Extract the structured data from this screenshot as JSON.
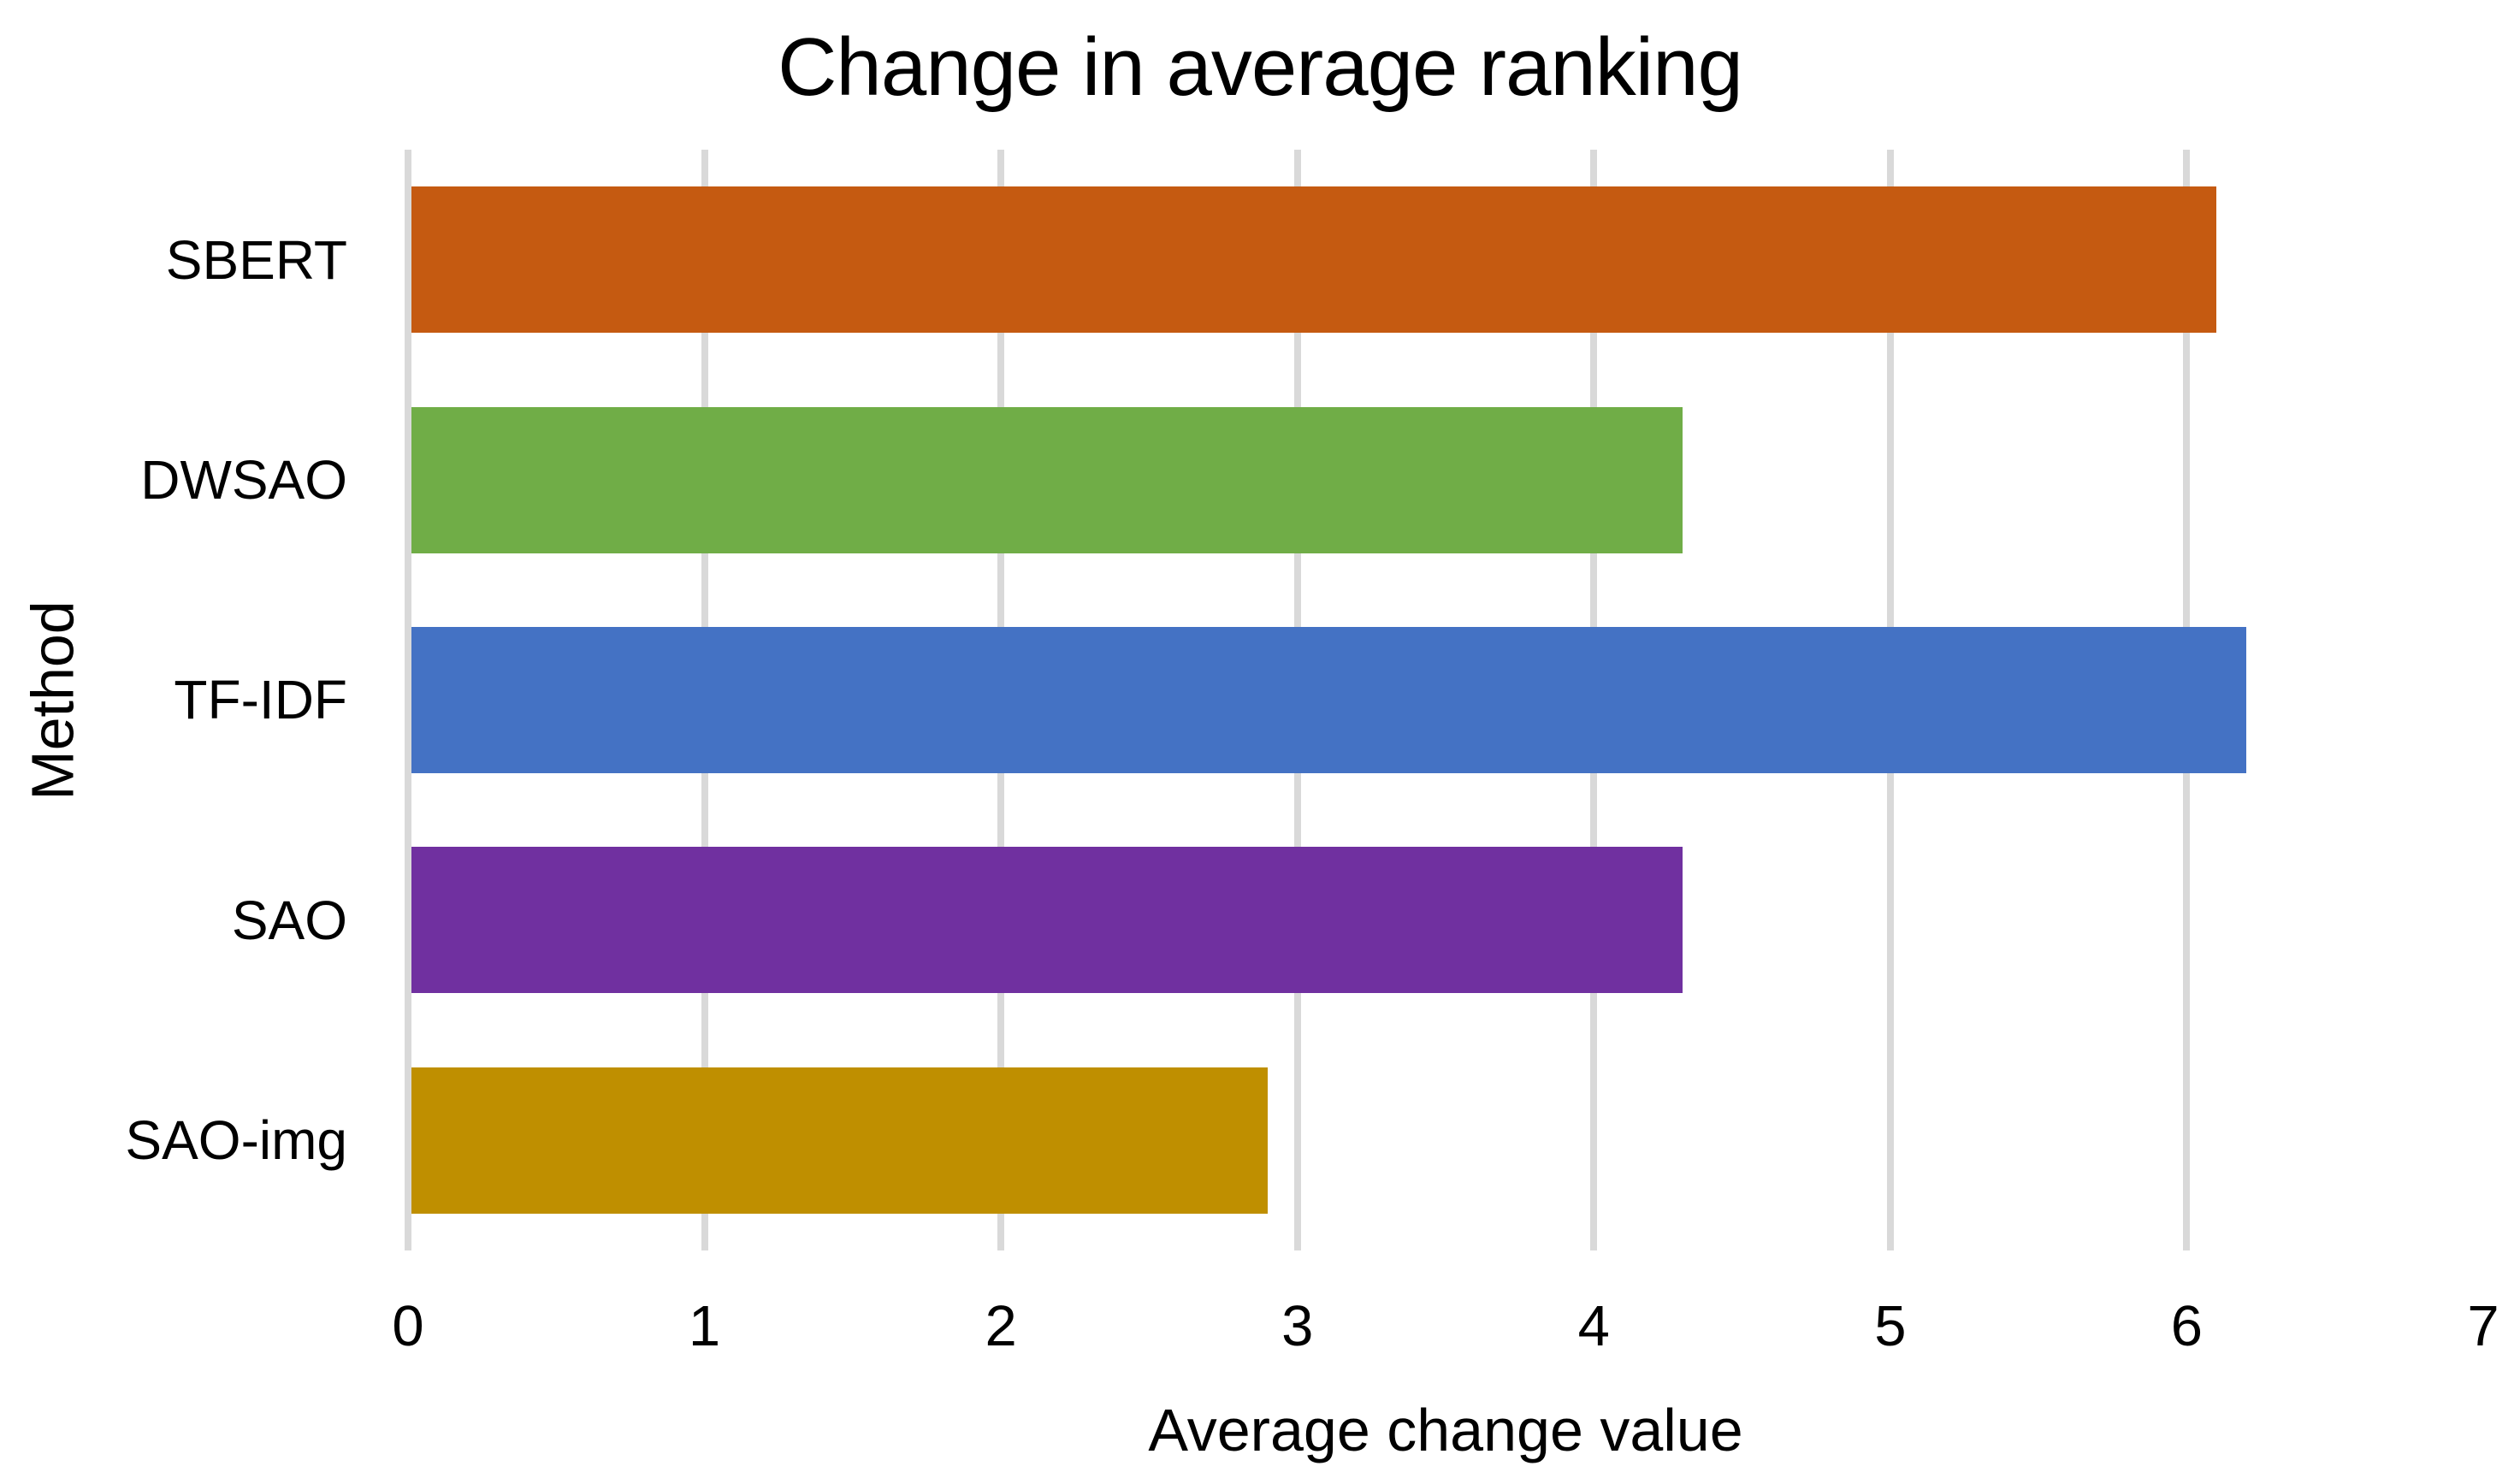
{
  "chart_data": {
    "type": "bar",
    "orientation": "horizontal",
    "title": "Change in average ranking",
    "xlabel": "Average change value",
    "ylabel": "Method",
    "categories": [
      "SBERT",
      "DWSAO",
      "TF-IDF",
      "SAO",
      "SAO-img"
    ],
    "values": [
      6.1,
      4.3,
      6.2,
      4.3,
      2.9
    ],
    "bar_colors": [
      "#C55A11",
      "#70AD47",
      "#4472C4",
      "#7030A0",
      "#BF8F00"
    ],
    "xlim": [
      0,
      7
    ],
    "xticks": [
      0,
      1,
      2,
      3,
      4,
      5,
      6,
      7
    ],
    "gridline_ticks": [
      0,
      1,
      2,
      3,
      4,
      5,
      6
    ],
    "grid": "vertical",
    "gridline_color": "#D9D9D9",
    "background_color": "#FFFFFF",
    "text_color": "#000000",
    "legend": "none"
  }
}
